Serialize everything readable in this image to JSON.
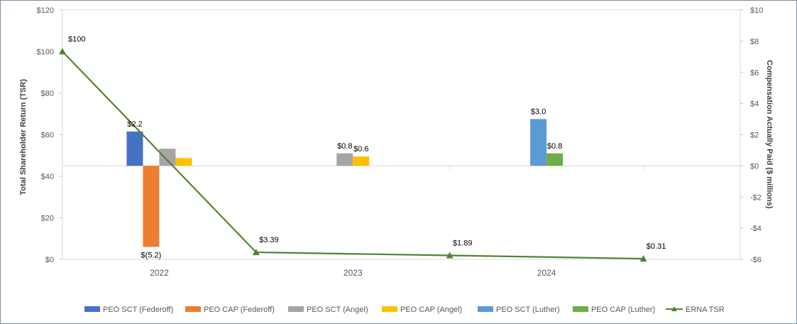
{
  "chart_data": {
    "type": "bar",
    "categories": [
      "2022",
      "2023",
      "2024"
    ],
    "y_left": {
      "label": "Total Shareholder Return (TSR)",
      "range": [
        0,
        120
      ],
      "ticks": [
        0,
        20,
        40,
        60,
        80,
        100,
        120
      ],
      "tick_labels": [
        "$0",
        "$20",
        "$40",
        "$60",
        "$80",
        "$100",
        "$120"
      ]
    },
    "y_right": {
      "label": "Compensation Actually Paid ($ millions)",
      "range": [
        -6,
        10
      ],
      "ticks": [
        -6,
        -4,
        -2,
        0,
        2,
        4,
        6,
        8,
        10
      ],
      "tick_labels": [
        "-$6",
        "-$4",
        "-$2",
        "$0",
        "$2",
        "$4",
        "$6",
        "$8",
        "$10"
      ]
    },
    "bar_series": [
      {
        "name": "PEO SCT (Federoff)",
        "color": "#4472C4",
        "values": [
          2.2,
          null,
          null
        ],
        "labels": [
          "$2.2",
          "",
          ""
        ]
      },
      {
        "name": "PEO CAP (Federoff)",
        "color": "#ED7D31",
        "values": [
          -5.2,
          null,
          null
        ],
        "labels": [
          "$(5.2)",
          "",
          ""
        ]
      },
      {
        "name": "PEO SCT (Angel)",
        "color": "#A5A5A5",
        "values": [
          1.1,
          0.8,
          null
        ],
        "labels": [
          "",
          "$0.8",
          ""
        ]
      },
      {
        "name": "PEO CAP (Angel)",
        "color": "#FFC000",
        "values": [
          0.5,
          0.6,
          null
        ],
        "labels": [
          "",
          "$0.6",
          ""
        ]
      },
      {
        "name": "PEO SCT (Luther)",
        "color": "#5B9BD5",
        "values": [
          null,
          null,
          3.0
        ],
        "labels": [
          "",
          "",
          "$3.0"
        ]
      },
      {
        "name": "PEO CAP (Luther)",
        "color": "#70AD47",
        "values": [
          null,
          null,
          0.8
        ],
        "labels": [
          "",
          "",
          "$0.8"
        ]
      }
    ],
    "line_series": {
      "name": "ERNA TSR",
      "color": "#548235",
      "x": [
        0,
        1,
        2,
        3
      ],
      "values": [
        100,
        3.39,
        1.89,
        0.31
      ],
      "labels": [
        "$100",
        "$3.39",
        "$1.89",
        "$0.31"
      ]
    },
    "legend": "bottom",
    "grid": false
  }
}
